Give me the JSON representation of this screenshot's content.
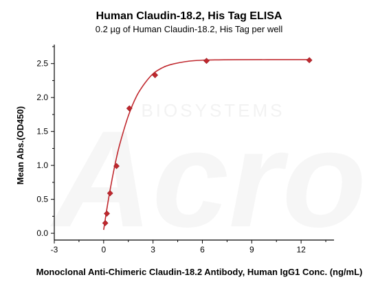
{
  "chart_data": {
    "type": "scatter",
    "title": "Human Claudin-18.2, His Tag ELISA",
    "subtitle": "0.2 µg of Human Claudin-18.2, His Tag per well",
    "xlabel": "Monoclonal Anti-Chimeric Claudin-18.2 Antibody, Human IgG1 Conc. (ng/mL)",
    "ylabel": "Mean Abs.(OD450)",
    "xlim": [
      -3,
      14
    ],
    "ylim": [
      -0.1,
      2.78
    ],
    "x_ticks": [
      -3,
      0,
      3,
      6,
      9,
      12
    ],
    "x_tick_labels": [
      "-3",
      "0",
      "3",
      "6",
      "9",
      "12"
    ],
    "y_ticks": [
      0.0,
      0.5,
      1.0,
      1.5,
      2.0,
      2.5
    ],
    "y_tick_labels": [
      "0.0",
      "0.5",
      "1.0",
      "1.5",
      "2.0",
      "2.5"
    ],
    "grid": false,
    "legend": "none",
    "series": [
      {
        "x": [
          0.098,
          0.195,
          0.391,
          0.781,
          1.563,
          3.125,
          6.25,
          12.5
        ],
        "y": [
          0.15,
          0.29,
          0.59,
          0.99,
          1.84,
          2.33,
          2.54,
          2.55
        ],
        "marker": "diamond",
        "color": "#c0282e",
        "fit": {
          "type": "curve",
          "color": "#c0282e",
          "x": [
            0,
            0.25,
            0.5,
            0.75,
            1,
            1.5,
            2,
            2.5,
            3,
            3.5,
            4,
            5,
            6,
            7,
            8,
            10,
            12.5
          ],
          "y": [
            0.05,
            0.44,
            0.78,
            1.08,
            1.33,
            1.73,
            2.02,
            2.21,
            2.35,
            2.43,
            2.48,
            2.53,
            2.55,
            2.555,
            2.557,
            2.558,
            2.558
          ]
        }
      }
    ]
  },
  "watermark": {
    "main": "Acro",
    "sub": "BIOSYSTEMS"
  }
}
